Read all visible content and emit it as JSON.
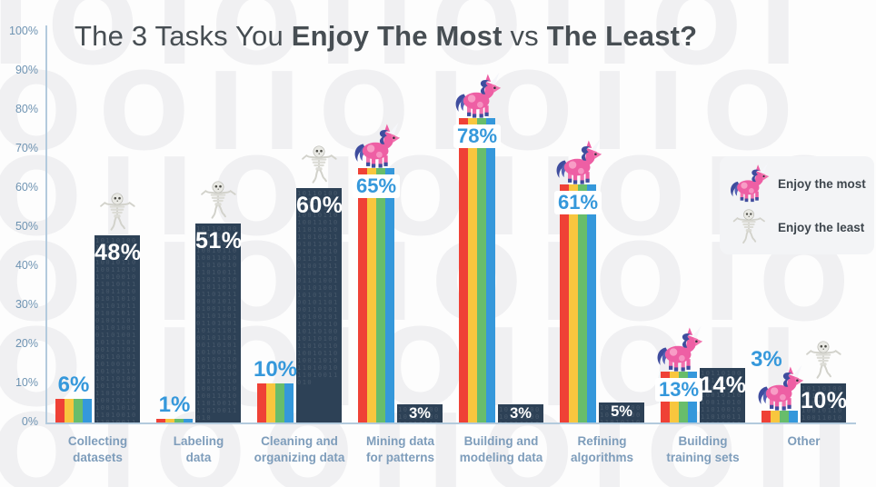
{
  "title": {
    "normal1": "The 3 Tasks You ",
    "bold1": "Enjoy The Most",
    "normal2": " vs ",
    "bold2": "The Least?"
  },
  "legend": {
    "items": [
      {
        "icon": "unicorn-icon",
        "label": "Enjoy the most"
      },
      {
        "icon": "skeleton-icon",
        "label": "Enjoy the least"
      }
    ]
  },
  "background": {
    "pattern_text": "IOIOIIOIIOIOOIIOIOIIOOIIOIOIIOIOOIIOIIOIOIOOIIOIOIIOIIOIOOIIOIOIIOOIIOIOIIOIOOIIOIIOIOIOOIIOIOIIOIIOIOOIIOIOIIOOIIOIOIIOIOOIIOIIOIOIOOIIO",
    "bar_binary_text": "1011010010110100110101101001011010011010110100101101001101011010010110100110101101001011010011010110100101101001101011010010110100110101101001011010011010110100101101001101011010010110100110101101001011010011010"
  },
  "colors": {
    "bar_dark": "#2d4156",
    "stripe_red": "#ef4136",
    "stripe_yellow": "#f8c63e",
    "stripe_green": "#68bd6b",
    "stripe_blue": "#3598db",
    "value_blue": "#3598db",
    "axis": "#b3cadd",
    "tick_text": "#6e93b2",
    "category_text": "#7e9dbb",
    "title_text": "#474e53"
  },
  "chart_data": {
    "type": "bar",
    "title": "The 3 Tasks You Enjoy The Most vs The Least?",
    "xlabel": "",
    "ylabel": "",
    "ylim": [
      0,
      100
    ],
    "grid": false,
    "legend_position": "right",
    "y_ticks": [
      "100%",
      "90%",
      "80%",
      "70%",
      "60%",
      "50%",
      "40%",
      "30%",
      "20%",
      "10%",
      "0%"
    ],
    "categories": [
      [
        "Collecting",
        "datasets"
      ],
      [
        "Labeling",
        "data"
      ],
      [
        "Cleaning and",
        "organizing data"
      ],
      [
        "Mining data",
        "for patterns"
      ],
      [
        "Building and",
        "modeling data"
      ],
      [
        "Refining",
        "algorithms"
      ],
      [
        "Building",
        "training sets"
      ],
      [
        "Other"
      ]
    ],
    "series": [
      {
        "name": "Enjoy the most",
        "values": [
          6,
          1,
          10,
          65,
          78,
          61,
          13,
          3
        ],
        "labels": [
          "6%",
          "1%",
          "10%",
          "65%",
          "78%",
          "61%",
          "13%",
          "3%"
        ],
        "stripe_colors": [
          "#ef4136",
          "#f8c63e",
          "#68bd6b",
          "#3598db"
        ]
      },
      {
        "name": "Enjoy the least",
        "values": [
          48,
          51,
          60,
          3,
          3,
          5,
          14,
          10
        ],
        "labels": [
          "48%",
          "51%",
          "60%",
          "3%",
          "3%",
          "5%",
          "14%",
          "10%"
        ],
        "color": "#2d4156"
      }
    ],
    "decorations": {
      "unicorn_on_most": [
        false,
        false,
        false,
        true,
        true,
        true,
        true,
        true
      ],
      "skeleton_on_least": [
        true,
        true,
        true,
        false,
        false,
        false,
        false,
        true
      ],
      "most_label_style": [
        "above",
        "above",
        "above",
        "box",
        "box",
        "box",
        "box",
        "above-raised"
      ]
    }
  }
}
